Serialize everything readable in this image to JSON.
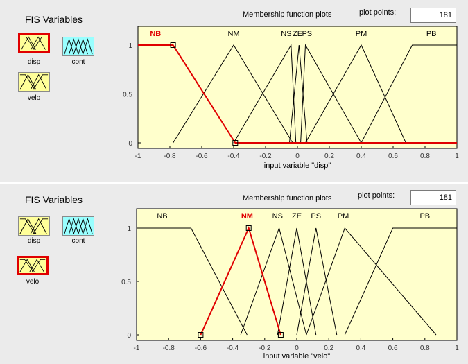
{
  "panels": [
    {
      "fis_title": "FIS Variables",
      "selected": "disp",
      "variables": {
        "disp": "disp",
        "cont": "cont",
        "velo": "velo"
      },
      "plot_title": "Membership function plots",
      "plot_points_label": "plot points:",
      "plot_points_value": "181",
      "axis_label": "input variable \"disp\"",
      "highlight_color": "#e00000",
      "chart_data": {
        "type": "line",
        "xlim": [
          -1,
          1
        ],
        "ylim": [
          0,
          1
        ],
        "xticks": [
          "-1",
          "-0.8",
          "-0.6",
          "-0.4",
          "-0.2",
          "0",
          "0.2",
          "0.4",
          "0.6",
          "0.8",
          "1"
        ],
        "yticks": [
          "0",
          "0.5",
          "1"
        ],
        "grid": false,
        "selected_mf": "NB",
        "mfs": [
          {
            "name": "NB",
            "points": [
              [
                -1,
                1
              ],
              [
                -0.78,
                1
              ],
              [
                -0.39,
                0
              ],
              [
                1,
                0
              ]
            ]
          },
          {
            "name": "NM",
            "points": [
              [
                -0.78,
                0
              ],
              [
                -0.4,
                1
              ],
              [
                -0.03,
                0
              ]
            ]
          },
          {
            "name": "NS",
            "points": [
              [
                -0.4,
                0
              ],
              [
                -0.04,
                1
              ],
              [
                -0.01,
                0
              ]
            ]
          },
          {
            "name": "ZE",
            "points": [
              [
                -0.05,
                0
              ],
              [
                0.01,
                1
              ],
              [
                0.06,
                0
              ]
            ]
          },
          {
            "name": "PS",
            "points": [
              [
                0.02,
                0
              ],
              [
                0.05,
                1
              ],
              [
                0.4,
                0
              ]
            ]
          },
          {
            "name": "PM",
            "points": [
              [
                0.05,
                0
              ],
              [
                0.4,
                1
              ],
              [
                0.68,
                0
              ]
            ]
          },
          {
            "name": "PB",
            "points": [
              [
                0.4,
                0
              ],
              [
                0.72,
                1
              ],
              [
                1,
                1
              ]
            ]
          }
        ],
        "labels": [
          {
            "name": "NB",
            "x": -0.89
          },
          {
            "name": "NM",
            "x": -0.4
          },
          {
            "name": "NS",
            "x": -0.07
          },
          {
            "name": "ZE",
            "x": 0.0
          },
          {
            "name": "PS",
            "x": 0.06
          },
          {
            "name": "PM",
            "x": 0.4
          },
          {
            "name": "PB",
            "x": 0.84
          }
        ]
      }
    },
    {
      "fis_title": "FIS Variables",
      "selected": "velo",
      "variables": {
        "disp": "disp",
        "cont": "cont",
        "velo": "velo"
      },
      "plot_title": "Membership function plots",
      "plot_points_label": "plot points:",
      "plot_points_value": "181",
      "axis_label": "input variable \"velo\"",
      "highlight_color": "#e00000",
      "chart_data": {
        "type": "line",
        "xlim": [
          -1,
          1
        ],
        "ylim": [
          0,
          1
        ],
        "xticks": [
          "-1",
          "-0.8",
          "-0.6",
          "-0.4",
          "-0.2",
          "0",
          "0.2",
          "0.4",
          "0.6",
          "0.8",
          "1"
        ],
        "yticks": [
          "0",
          "0.5",
          "1"
        ],
        "grid": false,
        "selected_mf": "NM",
        "mfs": [
          {
            "name": "NB",
            "points": [
              [
                -1,
                1
              ],
              [
                -0.66,
                1
              ],
              [
                -0.31,
                0
              ]
            ]
          },
          {
            "name": "NM",
            "points": [
              [
                -0.6,
                0
              ],
              [
                -0.3,
                1
              ],
              [
                -0.1,
                0
              ]
            ]
          },
          {
            "name": "NS",
            "points": [
              [
                -0.35,
                0
              ],
              [
                -0.11,
                1
              ],
              [
                0.06,
                0
              ]
            ]
          },
          {
            "name": "ZE",
            "points": [
              [
                -0.12,
                0
              ],
              [
                0.0,
                1
              ],
              [
                0.12,
                0
              ]
            ]
          },
          {
            "name": "PS",
            "points": [
              [
                0.0,
                0
              ],
              [
                0.12,
                1
              ],
              [
                0.25,
                0
              ]
            ]
          },
          {
            "name": "PM",
            "points": [
              [
                0.06,
                0
              ],
              [
                0.3,
                1
              ],
              [
                0.87,
                0
              ]
            ]
          },
          {
            "name": "PB",
            "points": [
              [
                0.3,
                0
              ],
              [
                0.6,
                1
              ],
              [
                1,
                1
              ]
            ]
          }
        ],
        "labels": [
          {
            "name": "NB",
            "x": -0.84
          },
          {
            "name": "NM",
            "x": -0.31
          },
          {
            "name": "NS",
            "x": -0.12
          },
          {
            "name": "ZE",
            "x": 0.0
          },
          {
            "name": "PS",
            "x": 0.12
          },
          {
            "name": "PM",
            "x": 0.29
          },
          {
            "name": "PB",
            "x": 0.8
          }
        ]
      }
    }
  ]
}
